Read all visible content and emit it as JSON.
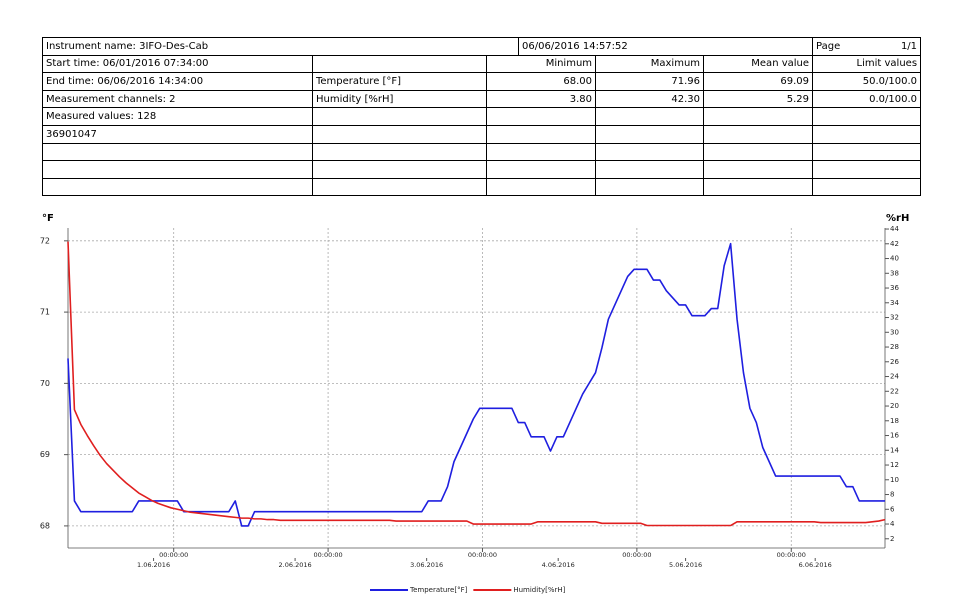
{
  "table": {
    "instrument": "Instrument name: 3IFO-Des-Cab",
    "date": "06/06/2016 14:57:52",
    "page_label": "Page",
    "page": "1/1",
    "info": [
      "Start time: 06/01/2016 07:34:00",
      "End time: 06/06/2016 14:34:00",
      "Measurement channels: 2",
      "Measured values: 128",
      "36901047"
    ],
    "columns": [
      "Minimum",
      "Maximum",
      "Mean value",
      "Limit values"
    ],
    "channels": [
      {
        "name": "Temperature [°F]",
        "min": "68.00",
        "max": "71.96",
        "mean": "69.09",
        "limits": "50.0/100.0"
      },
      {
        "name": "Humidity [%rH]",
        "min": "3.80",
        "max": "42.30",
        "mean": "5.29",
        "limits": "0.0/100.0"
      }
    ]
  },
  "chart_data": {
    "type": "line",
    "y_label": "°F",
    "y2_label": "%rH",
    "xlim": [
      0,
      127
    ],
    "xticks": [
      {
        "value": 16.43,
        "label": "00:00:00"
      },
      {
        "value": 40.43,
        "label": "00:00:00"
      },
      {
        "value": 64.43,
        "label": "00:00:00"
      },
      {
        "value": 88.43,
        "label": "00:00:00"
      },
      {
        "value": 112.43,
        "label": "00:00:00"
      }
    ],
    "xticks_dates": [
      {
        "value": 13.3,
        "label": "1.06.2016"
      },
      {
        "value": 35.3,
        "label": "2.06.2016"
      },
      {
        "value": 55.75,
        "label": "3.06.2016"
      },
      {
        "value": 76.2,
        "label": "4.06.2016"
      },
      {
        "value": 96.0,
        "label": "5.06.2016"
      },
      {
        "value": 116.15,
        "label": "6.06.2016"
      }
    ],
    "ylim": [
      67.69,
      72.18
    ],
    "yticks": [
      68,
      69,
      70,
      71,
      72
    ],
    "y2lim": [
      0.75,
      44.14
    ],
    "y2ticks": [
      2,
      4,
      6,
      8,
      10,
      12,
      14,
      16,
      18,
      20,
      22,
      24,
      26,
      28,
      30,
      32,
      34,
      36,
      38,
      40,
      42,
      44
    ],
    "grid": true,
    "series": [
      {
        "name": "Temperature[°F]",
        "color": "#1f1fe0",
        "values": [
          70.35,
          68.35,
          68.2,
          68.2,
          68.2,
          68.2,
          68.2,
          68.2,
          68.2,
          68.2,
          68.2,
          68.35,
          68.35,
          68.35,
          68.35,
          68.35,
          68.35,
          68.35,
          68.2,
          68.2,
          68.2,
          68.2,
          68.2,
          68.2,
          68.2,
          68.2,
          68.35,
          68.0,
          68.0,
          68.2,
          68.2,
          68.2,
          68.2,
          68.2,
          68.2,
          68.2,
          68.2,
          68.2,
          68.2,
          68.2,
          68.2,
          68.2,
          68.2,
          68.2,
          68.2,
          68.2,
          68.2,
          68.2,
          68.2,
          68.2,
          68.2,
          68.2,
          68.2,
          68.2,
          68.2,
          68.2,
          68.35,
          68.35,
          68.35,
          68.55,
          68.9,
          69.1,
          69.3,
          69.5,
          69.65,
          69.65,
          69.65,
          69.65,
          69.65,
          69.65,
          69.45,
          69.45,
          69.25,
          69.25,
          69.25,
          69.05,
          69.25,
          69.25,
          69.45,
          69.65,
          69.85,
          70.0,
          70.15,
          70.5,
          70.9,
          71.1,
          71.3,
          71.5,
          71.6,
          71.6,
          71.6,
          71.45,
          71.45,
          71.3,
          71.2,
          71.1,
          71.1,
          70.95,
          70.95,
          70.95,
          71.05,
          71.05,
          71.65,
          71.96,
          70.9,
          70.15,
          69.65,
          69.45,
          69.1,
          68.9,
          68.7,
          68.7,
          68.7,
          68.7,
          68.7,
          68.7,
          68.7,
          68.7,
          68.7,
          68.7,
          68.7,
          68.55,
          68.55,
          68.35,
          68.35,
          68.35,
          68.35,
          68.35
        ]
      },
      {
        "name": "Humidity[%rH]",
        "color": "#e01f1f",
        "axis": "y2",
        "values": [
          42.3,
          19.5,
          17.5,
          16.0,
          14.6,
          13.3,
          12.2,
          11.3,
          10.4,
          9.6,
          8.9,
          8.2,
          7.7,
          7.2,
          6.8,
          6.5,
          6.2,
          6.0,
          5.8,
          5.6,
          5.5,
          5.4,
          5.3,
          5.2,
          5.1,
          5.0,
          4.9,
          4.8,
          4.8,
          4.7,
          4.7,
          4.6,
          4.6,
          4.5,
          4.5,
          4.5,
          4.5,
          4.5,
          4.5,
          4.5,
          4.5,
          4.5,
          4.5,
          4.5,
          4.5,
          4.5,
          4.5,
          4.5,
          4.5,
          4.5,
          4.5,
          4.4,
          4.4,
          4.4,
          4.4,
          4.4,
          4.4,
          4.4,
          4.4,
          4.4,
          4.4,
          4.4,
          4.4,
          4.0,
          4.0,
          4.0,
          4.0,
          4.0,
          4.0,
          4.0,
          4.0,
          4.0,
          4.0,
          4.3,
          4.3,
          4.3,
          4.3,
          4.3,
          4.3,
          4.3,
          4.3,
          4.3,
          4.3,
          4.1,
          4.1,
          4.1,
          4.1,
          4.1,
          4.1,
          4.1,
          3.8,
          3.8,
          3.8,
          3.8,
          3.8,
          3.8,
          3.8,
          3.8,
          3.8,
          3.8,
          3.8,
          3.8,
          3.8,
          3.8,
          4.3,
          4.3,
          4.3,
          4.3,
          4.3,
          4.3,
          4.3,
          4.3,
          4.3,
          4.3,
          4.3,
          4.3,
          4.3,
          4.2,
          4.2,
          4.2,
          4.2,
          4.2,
          4.2,
          4.2,
          4.2,
          4.3,
          4.4,
          4.6
        ]
      }
    ]
  }
}
